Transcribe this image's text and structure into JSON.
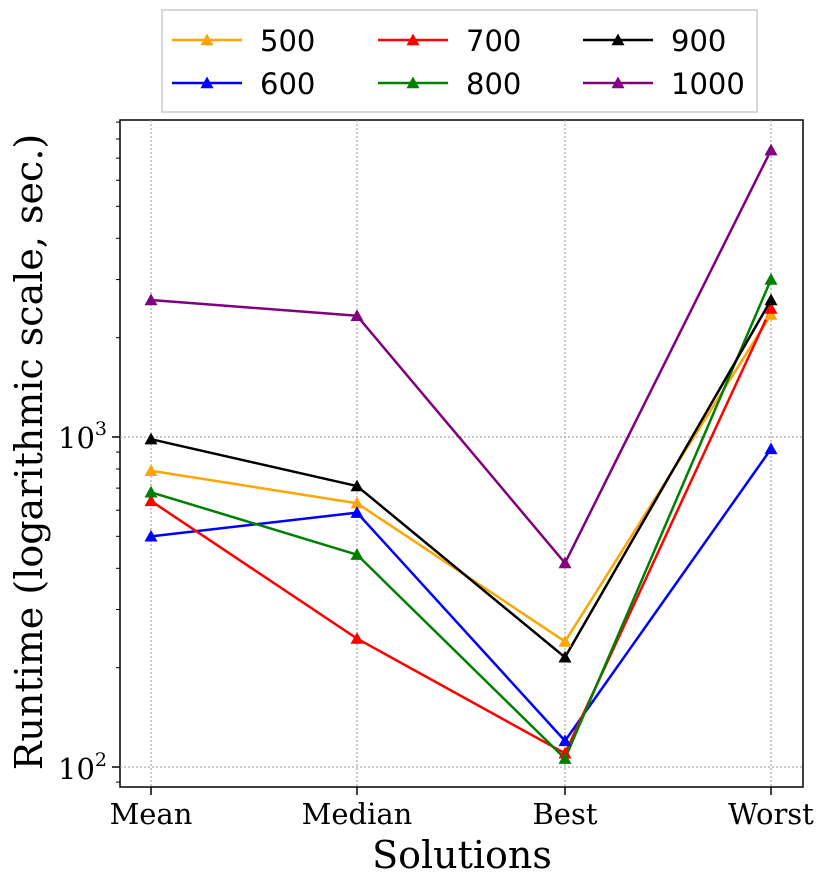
{
  "chart_data": {
    "type": "line",
    "title": "",
    "xlabel": "Solutions",
    "ylabel": "Runtime  (logarithmic  scale,  sec.)",
    "yscale": "log",
    "ylim": [
      90,
      9500
    ],
    "categories": [
      "Mean",
      "Median",
      "Best",
      "Worst"
    ],
    "y_ticks": [
      {
        "value": 100,
        "base": "10",
        "exp": "2"
      },
      {
        "value": 1000,
        "base": "10",
        "exp": "3"
      }
    ],
    "grid": true,
    "legend_position": "top",
    "marker": "triangle-up",
    "series": [
      {
        "name": "500",
        "color": "#ffa500",
        "values": [
          790,
          630,
          240,
          2350
        ]
      },
      {
        "name": "600",
        "color": "#0000ff",
        "values": [
          500,
          590,
          120,
          920
        ]
      },
      {
        "name": "700",
        "color": "#ff0000",
        "values": [
          640,
          245,
          110,
          2450
        ]
      },
      {
        "name": "800",
        "color": "#008000",
        "values": [
          680,
          440,
          106,
          3000
        ]
      },
      {
        "name": "900",
        "color": "#000000",
        "values": [
          985,
          710,
          215,
          2600
        ]
      },
      {
        "name": "1000",
        "color": "#800080",
        "values": [
          2600,
          2330,
          415,
          7400
        ]
      }
    ]
  }
}
